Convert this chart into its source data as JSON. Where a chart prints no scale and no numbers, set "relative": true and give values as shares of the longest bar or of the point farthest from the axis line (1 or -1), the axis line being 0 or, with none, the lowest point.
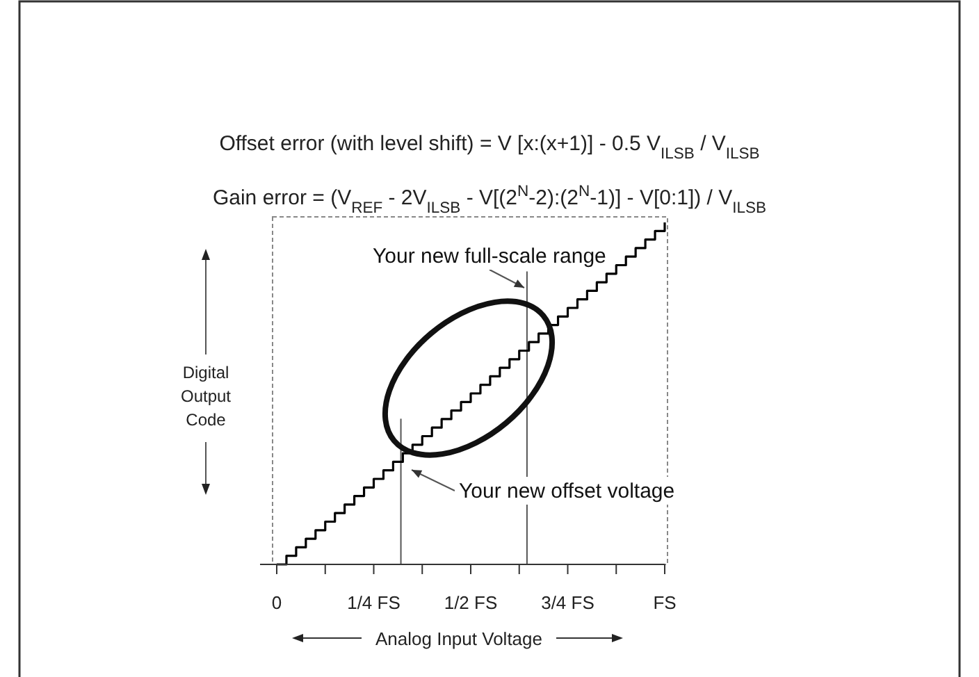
{
  "chart_data": {
    "type": "step",
    "relative": true,
    "annotations": [
      "Offset error (with level shift) = V [x:(x+1)] - 0.5 V$_{ILSB}$ / V$_{ILSB}$",
      "Gain error = (V$_{REF}$ - 2V$_{ILSB}$ - V[(2$^{N}$-2):(2$^{N}$-1)] - V[0:1]) / V$_{ILSB}$",
      "Your new offset voltage",
      "Your new full-scale range"
    ],
    "xlabel": "Analog Input Voltage",
    "ylabel": "Digital Output Code",
    "categories": [
      "0",
      null,
      null,
      null,
      null,
      null,
      null,
      null,
      null,
      null,
      "1/4 FS",
      null,
      null,
      null,
      null,
      null,
      null,
      null,
      null,
      null,
      "1/2 FS",
      null,
      null,
      null,
      null,
      null,
      null,
      null,
      null,
      null,
      "3/4 FS",
      null,
      null,
      null,
      null,
      null,
      null,
      null,
      null,
      null,
      "FS"
    ],
    "series": [
      {
        "color": "#000000",
        "values": [
          0,
          0.025,
          0.05,
          0.075,
          0.1,
          0.125,
          0.15,
          0.175,
          0.2,
          0.225,
          0.25,
          0.275,
          0.3,
          0.325,
          0.35,
          0.375,
          0.4,
          0.425,
          0.45,
          0.475,
          0.5,
          0.525,
          0.55,
          0.575,
          0.6,
          0.625,
          0.65,
          0.675,
          0.7,
          0.725,
          0.75,
          0.775,
          0.8,
          0.825,
          0.85,
          0.875,
          0.9,
          0.925,
          0.95,
          0.975,
          1
        ]
      }
    ]
  }
}
